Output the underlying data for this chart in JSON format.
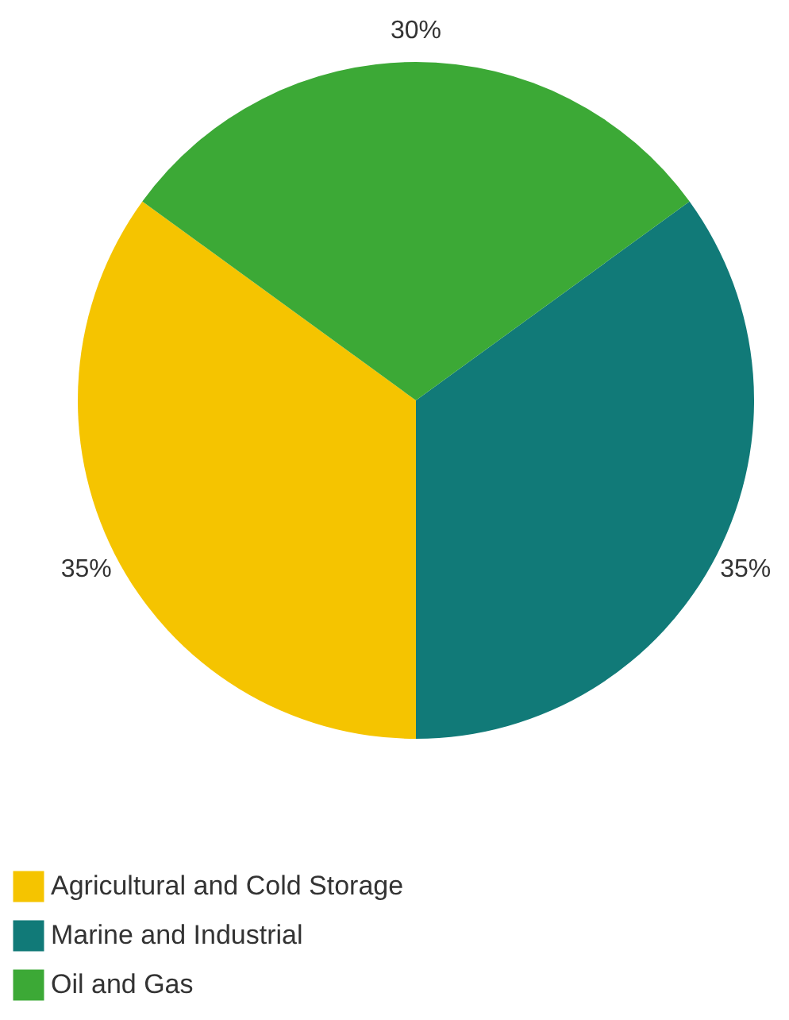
{
  "chart_data": {
    "type": "pie",
    "categories": [
      "Agricultural and Cold Storage",
      "Marine and Industrial",
      "Oil and Gas"
    ],
    "values": [
      35,
      35,
      30
    ],
    "colors": [
      "#f5c400",
      "#117a78",
      "#3ca936"
    ],
    "value_labels": [
      "35%",
      "35%",
      "30%"
    ],
    "legend": "bottom left"
  }
}
